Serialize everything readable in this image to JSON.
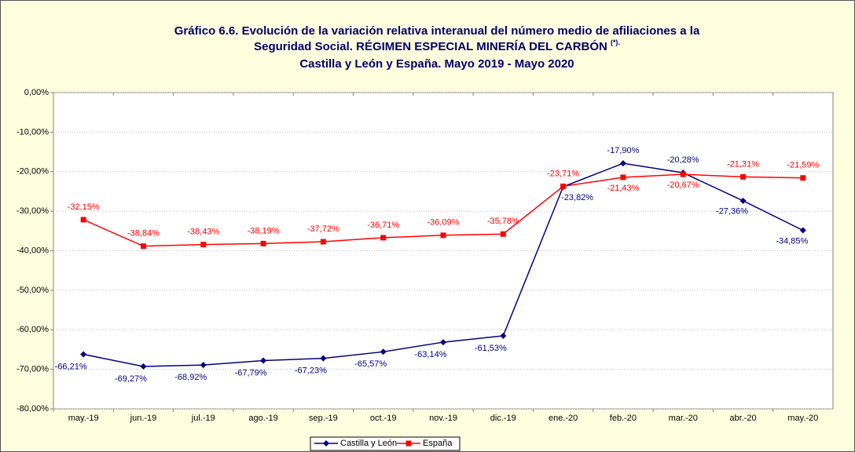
{
  "chart_data": {
    "type": "line",
    "title": [
      "Gráfico 6.6. Evolución de la variación relativa interanual del número medio de  afiliaciones a la",
      "Seguridad Social. RÉGIMEN ESPECIAL MINERÍA DEL CARBÓN",
      "Castilla y León y España. Mayo 2019 - Mayo 2020"
    ],
    "title_note": "(*).",
    "categories": [
      "may.-19",
      "jun.-19",
      "jul.-19",
      "ago.-19",
      "sep.-19",
      "oct.-19",
      "nov.-19",
      "dic.-19",
      "ene.-20",
      "feb.-20",
      "mar.-20",
      "abr.-20",
      "may.-20"
    ],
    "series": [
      {
        "name": "Castilla y León",
        "color": "#000080",
        "marker": "diamond",
        "values": [
          -66.21,
          -69.27,
          -68.92,
          -67.79,
          -67.23,
          -65.57,
          -63.14,
          -61.53,
          -23.82,
          -17.9,
          -20.28,
          -27.36,
          -34.85
        ],
        "value_labels": [
          "-66,21%",
          "-69,27%",
          "-68,92%",
          "-67,79%",
          "-67,23%",
          "-65,57%",
          "-63,14%",
          "-61,53%",
          "-23,82%",
          "-17,90%",
          "-20,28%",
          "-27,36%",
          "-34,85%"
        ]
      },
      {
        "name": "España",
        "color": "#ff0000",
        "marker": "square",
        "values": [
          -32.15,
          -38.84,
          -38.43,
          -38.19,
          -37.72,
          -36.71,
          -36.09,
          -35.78,
          -23.71,
          -21.43,
          -20.67,
          -21.31,
          -21.59
        ],
        "value_labels": [
          "-32,15%",
          "-38,84%",
          "-38,43%",
          "-38,19%",
          "-37,72%",
          "-36,71%",
          "-36,09%",
          "-35,78%",
          "-23,71%",
          "-21,43%",
          "-20,67%",
          "-21,31%",
          "-21,59%"
        ]
      }
    ],
    "ylim": [
      -80,
      0
    ],
    "yticks": [
      {
        "value": 0,
        "label": "0,00%"
      },
      {
        "value": -10,
        "label": "-10,00%"
      },
      {
        "value": -20,
        "label": "-20,00%"
      },
      {
        "value": -30,
        "label": "-30,00%"
      },
      {
        "value": -40,
        "label": "-40,00%"
      },
      {
        "value": -50,
        "label": "-50,00%"
      },
      {
        "value": -60,
        "label": "-60,00%"
      },
      {
        "value": -70,
        "label": "-70,00%"
      },
      {
        "value": -80,
        "label": "-80,00%"
      }
    ],
    "grid": true
  }
}
